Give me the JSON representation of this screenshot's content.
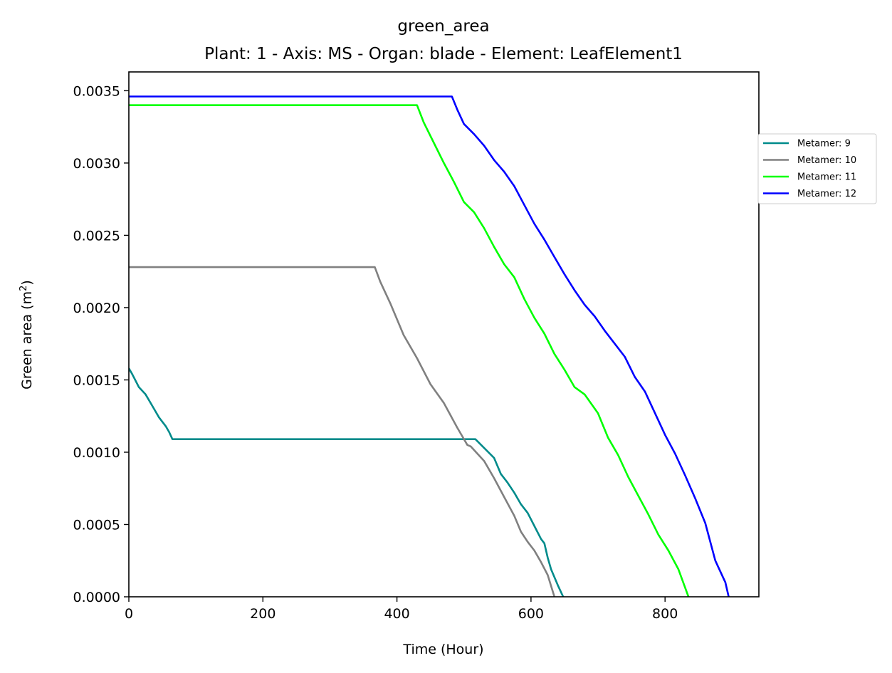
{
  "chart_data": {
    "type": "line",
    "title": "green_area",
    "subtitle": "Plant: 1 - Axis: MS - Organ: blade - Element: LeafElement1",
    "xlabel": "Time (Hour)",
    "ylabel": "Green area (m",
    "ylabel_sup": "2",
    "ylabel_end": ")",
    "xlim": [
      0,
      940
    ],
    "ylim": [
      0,
      0.00363
    ],
    "xticks": [
      0,
      200,
      400,
      600,
      800
    ],
    "xtick_labels": [
      "0",
      "200",
      "400",
      "600",
      "800"
    ],
    "yticks": [
      0,
      0.0005,
      0.001,
      0.0015,
      0.002,
      0.0025,
      0.003,
      0.0035
    ],
    "ytick_labels": [
      "0.0000",
      "0.0005",
      "0.0010",
      "0.0015",
      "0.0020",
      "0.0025",
      "0.0030",
      "0.0035"
    ],
    "grid": false,
    "legend_position": "outside-right",
    "series": [
      {
        "name": "Metamer: 9",
        "color": "#008b8b",
        "x": [
          0,
          5,
          15,
          25,
          35,
          45,
          55,
          60,
          65,
          517,
          530,
          545,
          555,
          565,
          575,
          585,
          595,
          605,
          615,
          620,
          625,
          630,
          640,
          648
        ],
        "y": [
          0.00158,
          0.00154,
          0.00145,
          0.0014,
          0.00132,
          0.00124,
          0.00118,
          0.00114,
          0.00109,
          0.00109,
          0.00103,
          0.00096,
          0.00085,
          0.00079,
          0.00072,
          0.00064,
          0.00058,
          0.00049,
          0.0004,
          0.00037,
          0.00027,
          0.00019,
          8e-05,
          0.0
        ]
      },
      {
        "name": "Metamer: 10",
        "color": "#808080",
        "x": [
          0,
          367,
          375,
          390,
          410,
          430,
          450,
          470,
          490,
          505,
          510,
          530,
          545,
          560,
          575,
          585,
          595,
          605,
          615,
          625,
          635
        ],
        "y": [
          0.00228,
          0.00228,
          0.00218,
          0.00203,
          0.00181,
          0.00165,
          0.00147,
          0.00134,
          0.00117,
          0.00105,
          0.00104,
          0.00094,
          0.00082,
          0.00069,
          0.00056,
          0.00045,
          0.00038,
          0.00032,
          0.00024,
          0.00015,
          0.0
        ]
      },
      {
        "name": "Metamer: 11",
        "color": "#00ff00",
        "x": [
          0,
          430,
          440,
          455,
          470,
          485,
          500,
          515,
          530,
          545,
          560,
          575,
          590,
          605,
          620,
          635,
          650,
          665,
          680,
          700,
          715,
          730,
          745,
          760,
          775,
          790,
          805,
          820,
          835
        ],
        "y": [
          0.0034,
          0.0034,
          0.00328,
          0.00314,
          0.003,
          0.00287,
          0.00273,
          0.00266,
          0.00255,
          0.00242,
          0.0023,
          0.00221,
          0.00206,
          0.00193,
          0.00182,
          0.00168,
          0.00157,
          0.00145,
          0.0014,
          0.00127,
          0.0011,
          0.00098,
          0.00083,
          0.0007,
          0.00057,
          0.00043,
          0.00032,
          0.00019,
          0.0
        ]
      },
      {
        "name": "Metamer: 12",
        "color": "#0000ff",
        "x": [
          0,
          482,
          490,
          500,
          515,
          530,
          545,
          560,
          575,
          590,
          605,
          620,
          635,
          650,
          665,
          680,
          695,
          710,
          725,
          740,
          755,
          770,
          785,
          800,
          815,
          830,
          845,
          860,
          875,
          890,
          895
        ],
        "y": [
          0.00346,
          0.00346,
          0.00337,
          0.00327,
          0.0032,
          0.00312,
          0.00302,
          0.00294,
          0.00284,
          0.00271,
          0.00258,
          0.00247,
          0.00235,
          0.00223,
          0.00212,
          0.00202,
          0.00194,
          0.00184,
          0.00175,
          0.00166,
          0.00152,
          0.00142,
          0.00127,
          0.00112,
          0.00099,
          0.00084,
          0.00068,
          0.00051,
          0.00025,
          0.0001,
          0.0
        ]
      }
    ]
  }
}
